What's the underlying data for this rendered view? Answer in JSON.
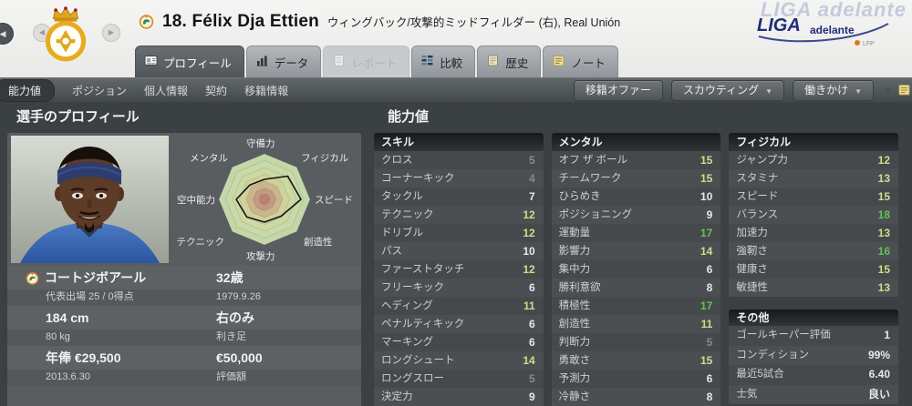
{
  "header": {
    "title": "18. Félix Dja Ettien",
    "subtitle": "ウィングバック/攻撃的ミッドフィルダー (右), Real Unión",
    "league_logo": {
      "ghost": "LIGA adelante",
      "primary": "LIGA",
      "secondary": "adelante",
      "mark": "LFP"
    },
    "tabs": [
      {
        "label": "プロフィール",
        "state": "active"
      },
      {
        "label": "データ",
        "state": "normal"
      },
      {
        "label": "レポート",
        "state": "disabled"
      },
      {
        "label": "比較",
        "state": "normal"
      },
      {
        "label": "歴史",
        "state": "normal"
      },
      {
        "label": "ノート",
        "state": "normal"
      }
    ]
  },
  "toolbar": {
    "subtabs": [
      {
        "label": "能力値",
        "state": "active"
      },
      {
        "label": "ポジション"
      },
      {
        "label": "個人情報"
      },
      {
        "label": "契約"
      },
      {
        "label": "移籍情報"
      }
    ],
    "buttons": [
      {
        "label": "移籍オファー",
        "dropdown": false
      },
      {
        "label": "スカウティング",
        "dropdown": true
      },
      {
        "label": "働きかけ",
        "dropdown": true
      }
    ]
  },
  "profile": {
    "heading": "選手のプロフィール",
    "rows": [
      {
        "left": "コートジボアール",
        "right": "32歳"
      },
      {
        "left": "代表出場 25 / 0得点",
        "right": "1979.9.26"
      },
      {
        "left": "184 cm",
        "right": "右のみ"
      },
      {
        "left": "80 kg",
        "right": "利き足"
      },
      {
        "left": "年俸 €29,500",
        "right": "€50,000"
      },
      {
        "left": "2013.6.30",
        "right": "評価額"
      }
    ]
  },
  "radar": {
    "type": "radar",
    "axes": [
      "守備力",
      "フィジカル",
      "スピード",
      "創造性",
      "攻撃力",
      "テクニック",
      "空中能力",
      "メンタル"
    ],
    "values_0_1": [
      0.44,
      0.72,
      0.8,
      0.52,
      0.5,
      0.55,
      0.62,
      0.45
    ]
  },
  "attributes": {
    "heading": "能力値",
    "columns": [
      {
        "sections": [
          {
            "header": "スキル",
            "scale": true,
            "rows": [
              {
                "label": "クロス",
                "value": "5"
              },
              {
                "label": "コーナーキック",
                "value": "4"
              },
              {
                "label": "タックル",
                "value": "7"
              },
              {
                "label": "テクニック",
                "value": "12"
              },
              {
                "label": "ドリブル",
                "value": "12"
              },
              {
                "label": "パス",
                "value": "10"
              },
              {
                "label": "ファーストタッチ",
                "value": "12"
              },
              {
                "label": "フリーキック",
                "value": "6"
              },
              {
                "label": "ヘディング",
                "value": "11"
              },
              {
                "label": "ペナルティキック",
                "value": "6"
              },
              {
                "label": "マーキング",
                "value": "6"
              },
              {
                "label": "ロングシュート",
                "value": "14"
              },
              {
                "label": "ロングスロー",
                "value": "5"
              },
              {
                "label": "決定力",
                "value": "9"
              }
            ]
          }
        ]
      },
      {
        "sections": [
          {
            "header": "メンタル",
            "scale": true,
            "rows": [
              {
                "label": "オフ ザ ボール",
                "value": "15"
              },
              {
                "label": "チームワーク",
                "value": "15"
              },
              {
                "label": "ひらめき",
                "value": "10"
              },
              {
                "label": "ポジショニング",
                "value": "9"
              },
              {
                "label": "運動量",
                "value": "17"
              },
              {
                "label": "影響力",
                "value": "14"
              },
              {
                "label": "集中力",
                "value": "6"
              },
              {
                "label": "勝利意欲",
                "value": "8"
              },
              {
                "label": "積極性",
                "value": "17"
              },
              {
                "label": "創造性",
                "value": "11"
              },
              {
                "label": "判断力",
                "value": "5"
              },
              {
                "label": "勇敢さ",
                "value": "15"
              },
              {
                "label": "予測力",
                "value": "6"
              },
              {
                "label": "冷静さ",
                "value": "8"
              }
            ]
          }
        ]
      },
      {
        "sections": [
          {
            "header": "フィジカル",
            "scale": true,
            "rows": [
              {
                "label": "ジャンプ力",
                "value": "12"
              },
              {
                "label": "スタミナ",
                "value": "13"
              },
              {
                "label": "スピード",
                "value": "15"
              },
              {
                "label": "バランス",
                "value": "18"
              },
              {
                "label": "加速力",
                "value": "13"
              },
              {
                "label": "強靭さ",
                "value": "16"
              },
              {
                "label": "健康さ",
                "value": "15"
              },
              {
                "label": "敏捷性",
                "value": "13"
              }
            ]
          },
          {
            "header": "その他",
            "scale": false,
            "rows": [
              {
                "label": "ゴールキーパー評価",
                "value": "1"
              },
              {
                "label": "コンディション",
                "value": "99%"
              },
              {
                "label": "最近5試合",
                "value": "6.40"
              },
              {
                "label": "士気",
                "value": "良い"
              }
            ]
          }
        ]
      }
    ]
  },
  "colors": {
    "value_low": "#84898c",
    "value_mid": "#e6e8e9",
    "value_good": "#d3dc87",
    "value_high": "#67c24f",
    "liga_blue": "#1e2d7a",
    "note_yellow": "#eedd92"
  }
}
